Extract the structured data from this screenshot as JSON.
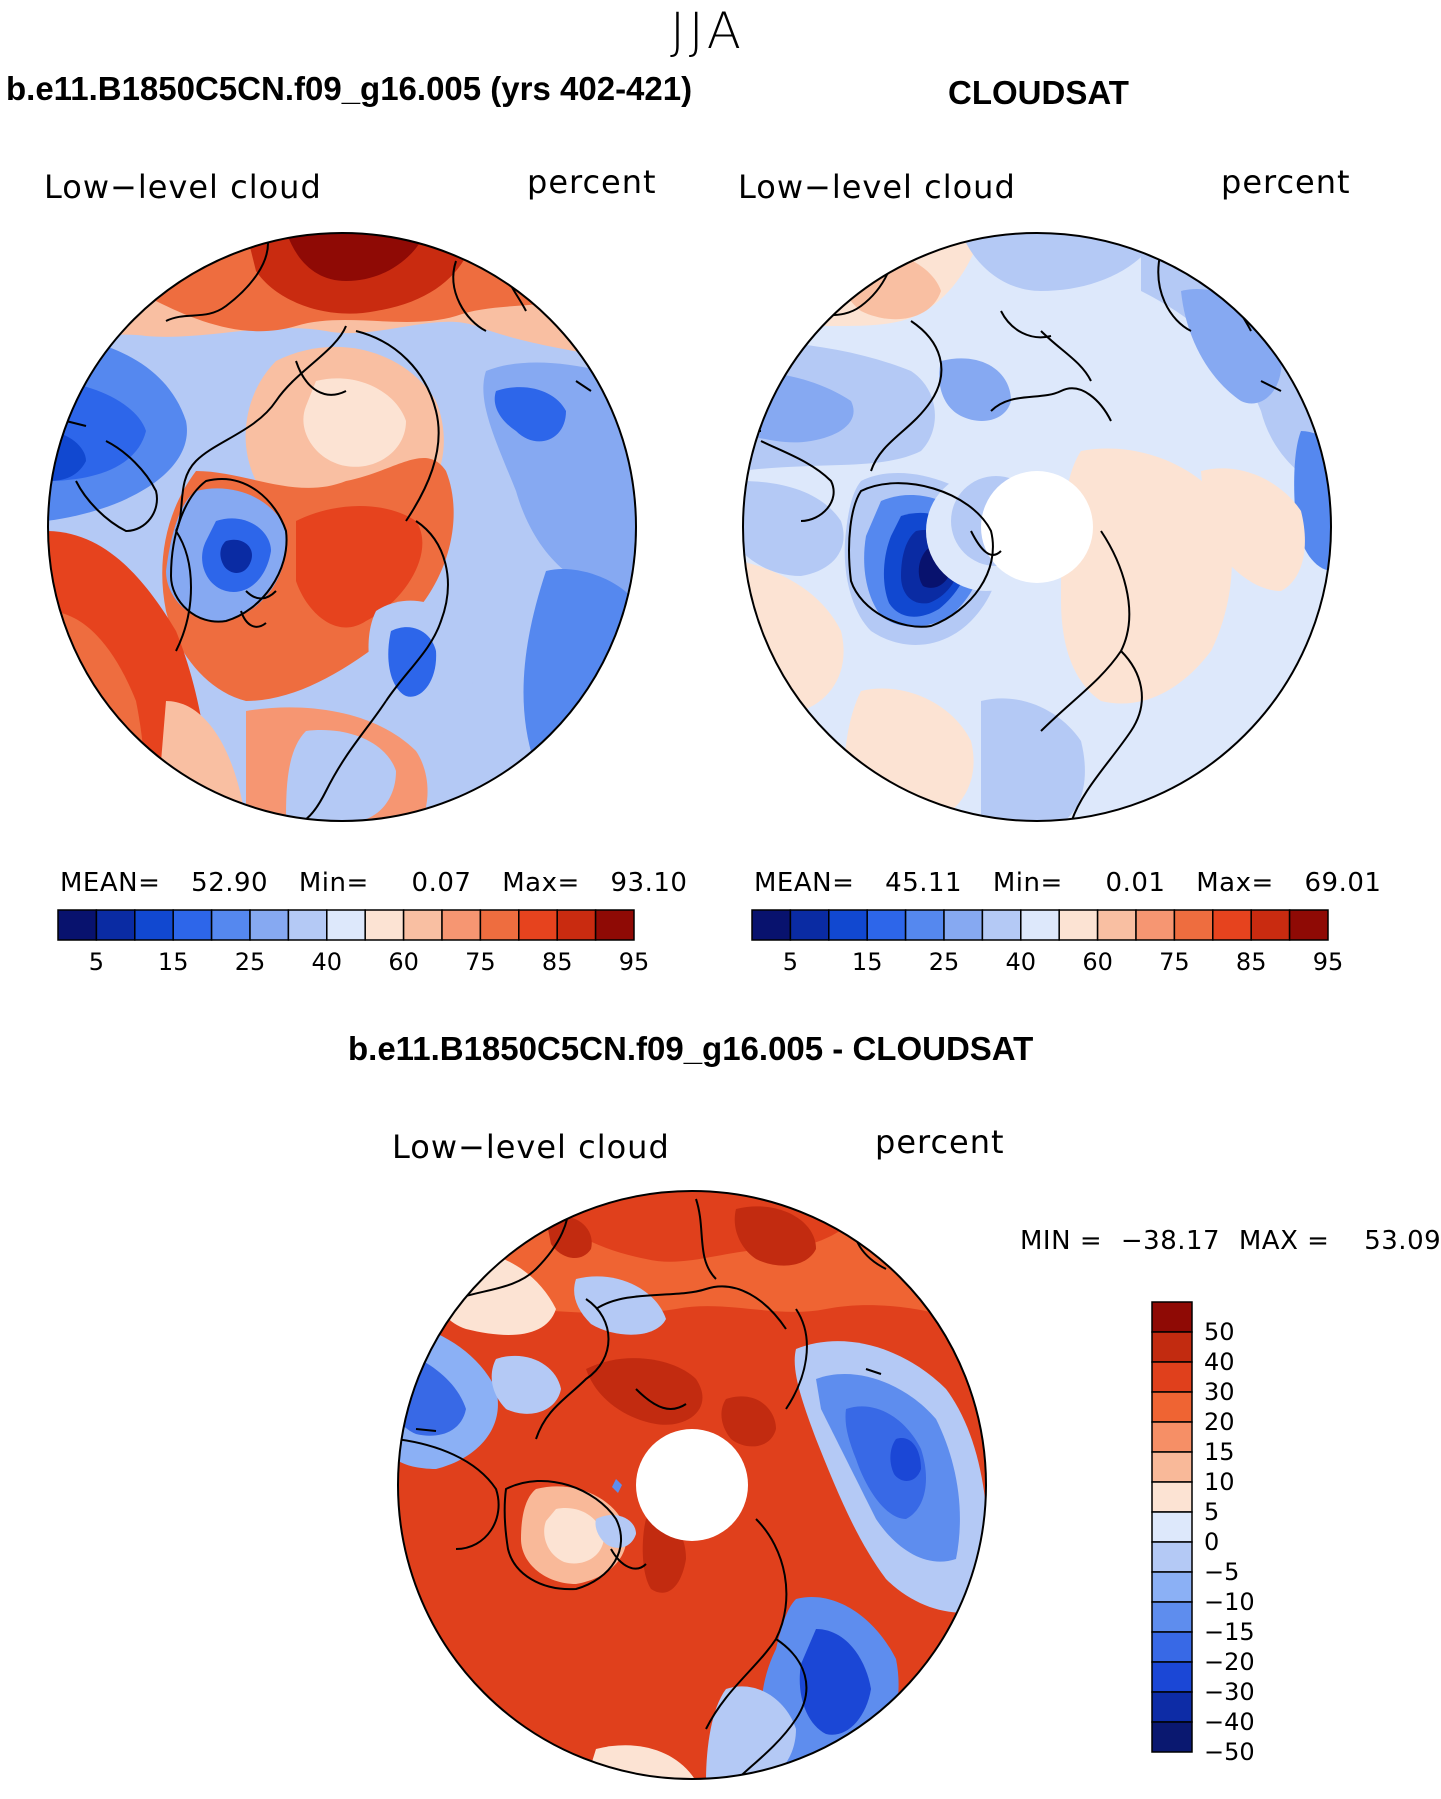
{
  "season": "JJA",
  "colors": {
    "abs_levels": [
      "#08126e",
      "#0a2ba3",
      "#1148d0",
      "#2d66ea",
      "#5588ef",
      "#86a9f2",
      "#b4c9f5",
      "#dde8fb",
      "#fce3d3",
      "#f9bfa2",
      "#f69672",
      "#ee6d3f",
      "#e6431e",
      "#c92b10",
      "#8f0a05"
    ],
    "diff_levels": [
      "#8f0a05",
      "#c22b10",
      "#e0401c",
      "#ef6433",
      "#f68f66",
      "#f9b999",
      "#fce3d3",
      "#dde8fb",
      "#b4c9f5",
      "#8bb0f5",
      "#5e8dee",
      "#3869e6",
      "#1b47d6",
      "#0d2ca6",
      "#0a1870"
    ]
  },
  "panels": {
    "model": {
      "title": "b.e11.B1850C5CN.f09_g16.005 (yrs 402-421)",
      "variable": "Low−level cloud",
      "units": "percent",
      "mean_label": "MEAN=",
      "mean": "52.90",
      "min_label": "Min=",
      "min": "0.07",
      "max_label": "Max=",
      "max": "93.10",
      "colorbar_ticks": [
        "5",
        "15",
        "25",
        "40",
        "60",
        "75",
        "85",
        "95"
      ]
    },
    "obs": {
      "title": "CLOUDSAT",
      "variable": "Low−level cloud",
      "units": "percent",
      "mean_label": "MEAN=",
      "mean": "45.11",
      "min_label": "Min=",
      "min": "0.01",
      "max_label": "Max=",
      "max": "69.01",
      "colorbar_ticks": [
        "5",
        "15",
        "25",
        "40",
        "60",
        "75",
        "85",
        "95"
      ]
    },
    "diff": {
      "title": "b.e11.B1850C5CN.f09_g16.005 - CLOUDSAT",
      "variable": "Low−level cloud",
      "units": "percent",
      "min_label": "MIN =",
      "min": "−38.17",
      "max_label": "MAX =",
      "max": "53.09",
      "colorbar_ticks": [
        "50",
        "40",
        "30",
        "20",
        "15",
        "10",
        "5",
        "0",
        "−5",
        "−10",
        "−15",
        "−20",
        "−30",
        "−40",
        "−50"
      ]
    }
  }
}
